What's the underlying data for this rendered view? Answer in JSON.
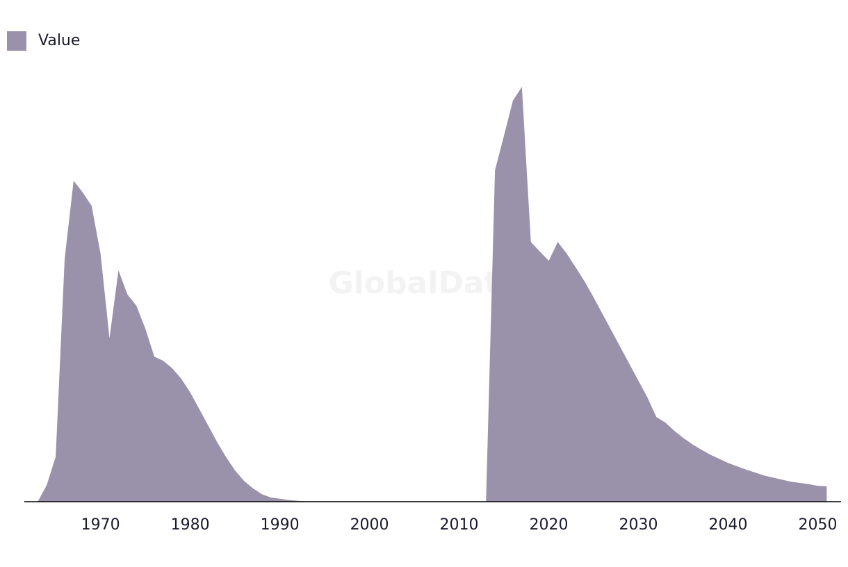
{
  "chart_data": {
    "type": "area",
    "watermark": "GlobalData",
    "x": [
      1963,
      1964,
      1965,
      1966,
      1967,
      1968,
      1969,
      1970,
      1971,
      1972,
      1973,
      1974,
      1975,
      1976,
      1977,
      1978,
      1979,
      1980,
      1981,
      1982,
      1983,
      1984,
      1985,
      1986,
      1987,
      1988,
      1989,
      1990,
      1991,
      1992,
      1993,
      1994,
      1995,
      1996,
      1997,
      1998,
      1999,
      2000,
      2001,
      2002,
      2003,
      2004,
      2005,
      2006,
      2007,
      2008,
      2009,
      2010,
      2011,
      2012,
      2013,
      2014,
      2015,
      2016,
      2017,
      2018,
      2019,
      2020,
      2021,
      2022,
      2023,
      2024,
      2025,
      2026,
      2027,
      2028,
      2029,
      2030,
      2031,
      2032,
      2033,
      2034,
      2035,
      2036,
      2037,
      2038,
      2039,
      2040,
      2041,
      2042,
      2043,
      2044,
      2045,
      2046,
      2047,
      2048,
      2049,
      2050,
      2051
    ],
    "series": [
      {
        "name": "Value",
        "color": "#9a91aa",
        "values": [
          0,
          4,
          10.8,
          58.3,
          77,
          74.2,
          71,
          59.5,
          39.2,
          55.5,
          49.7,
          47,
          41.5,
          34.8,
          33.8,
          32,
          29.5,
          26.2,
          22.3,
          18.3,
          14.3,
          10.7,
          7.5,
          5,
          3.2,
          1.8,
          1,
          0.7,
          0.4,
          0.2,
          0.1,
          0.1,
          0.1,
          0.1,
          0.1,
          0.1,
          0.1,
          0.1,
          0.1,
          0.1,
          0.1,
          0.1,
          0.1,
          0.1,
          0.1,
          0.1,
          0.1,
          0.1,
          0.1,
          0.1,
          0.1,
          79.5,
          87.8,
          96.2,
          99.5,
          62.3,
          60,
          57.8,
          62.3,
          59.5,
          56.2,
          52.8,
          49,
          45,
          41,
          37,
          33,
          29,
          25,
          20.3,
          19,
          17,
          15.3,
          13.8,
          12.5,
          11.3,
          10.3,
          9.3,
          8.5,
          7.7,
          7,
          6.3,
          5.8,
          5.3,
          4.8,
          4.5,
          4.2,
          3.8,
          3.7
        ]
      }
    ],
    "xlim": [
      1961.5,
      2052.6
    ],
    "xticks": [
      1970,
      1980,
      1990,
      2000,
      2010,
      2020,
      2030,
      2040,
      2050
    ],
    "ylim": [
      0,
      100
    ],
    "legend": "top-left"
  }
}
